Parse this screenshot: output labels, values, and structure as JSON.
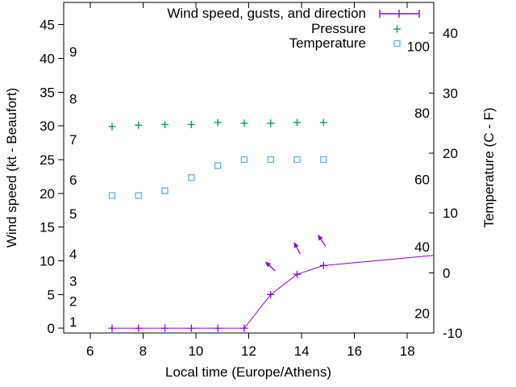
{
  "legend": {
    "items": [
      {
        "label": "Wind speed, gusts, and direction",
        "marker": "errorbar-line",
        "color": "#9400d3"
      },
      {
        "label": "Pressure",
        "marker": "plus",
        "color": "#009e73"
      },
      {
        "label": "Temperature",
        "marker": "open-square",
        "color": "#56b4e9"
      }
    ]
  },
  "axes": {
    "x": {
      "label": "Local time (Europe/Athens)",
      "min": 5,
      "max": 19,
      "ticks": [
        6,
        8,
        10,
        12,
        14,
        16,
        18
      ]
    },
    "y_left": {
      "label": "Wind speed (kt - Beaufort)",
      "min": -0.7,
      "max": 48.3,
      "ticks": [
        0,
        5,
        10,
        15,
        20,
        25,
        30,
        35,
        40,
        45
      ],
      "beaufort_labels": [
        {
          "label": "1",
          "kt": 1
        },
        {
          "label": "2",
          "kt": 4
        },
        {
          "label": "3",
          "kt": 7
        },
        {
          "label": "4",
          "kt": 11
        },
        {
          "label": "5",
          "kt": 17
        },
        {
          "label": "6",
          "kt": 22
        },
        {
          "label": "7",
          "kt": 28
        },
        {
          "label": "8",
          "kt": 34
        },
        {
          "label": "9",
          "kt": 41
        }
      ]
    },
    "y_right": {
      "label": "Temperature (C - F)",
      "min": -10,
      "max": 45.1,
      "ticks_celsius": [
        -10,
        0,
        10,
        20,
        30,
        40
      ],
      "fahrenheit_labels": [
        {
          "label": "20",
          "celsius": -6.7
        },
        {
          "label": "40",
          "celsius": 4.4
        },
        {
          "label": "60",
          "celsius": 15.6
        },
        {
          "label": "80",
          "celsius": 26.7
        },
        {
          "label": "100",
          "celsius": 37.8
        }
      ]
    }
  },
  "chart_data": {
    "type": "line",
    "grid": false,
    "legend_position": "top-right-inside",
    "x_hours": [
      6.83,
      7.83,
      8.83,
      9.83,
      10.83,
      11.83,
      12.83,
      13.83,
      14.83
    ],
    "series": [
      {
        "name": "Wind speed, gusts, and direction",
        "color": "#9400d3",
        "marker": "plus",
        "line": true,
        "axis": "left",
        "unit": "kt",
        "values": [
          0,
          0,
          0,
          0,
          0,
          0,
          5,
          8,
          9.3
        ],
        "trailing_vertex": {
          "x_hour": 19,
          "value": 10.8
        }
      },
      {
        "name": "Pressure",
        "color": "#009e73",
        "marker": "plus",
        "line": false,
        "axis": "left (unit not labeled on axis)",
        "values": [
          29.9,
          30.1,
          30.2,
          30.2,
          30.5,
          30.4,
          30.4,
          30.5,
          30.5
        ]
      },
      {
        "name": "Temperature",
        "color": "#56b4e9",
        "marker": "open-square",
        "line": false,
        "axis": "right",
        "unit": "C",
        "values": [
          12.9,
          12.9,
          13.7,
          15.9,
          17.9,
          18.9,
          18.9,
          18.9,
          18.9
        ]
      }
    ],
    "wind_direction_arrows": [
      {
        "x_hour": 13.0,
        "kt": 8.5,
        "angle_deg": 137
      },
      {
        "x_hour": 13.95,
        "kt": 11.0,
        "angle_deg": 118
      },
      {
        "x_hour": 14.9,
        "kt": 12.2,
        "angle_deg": 124
      }
    ]
  }
}
